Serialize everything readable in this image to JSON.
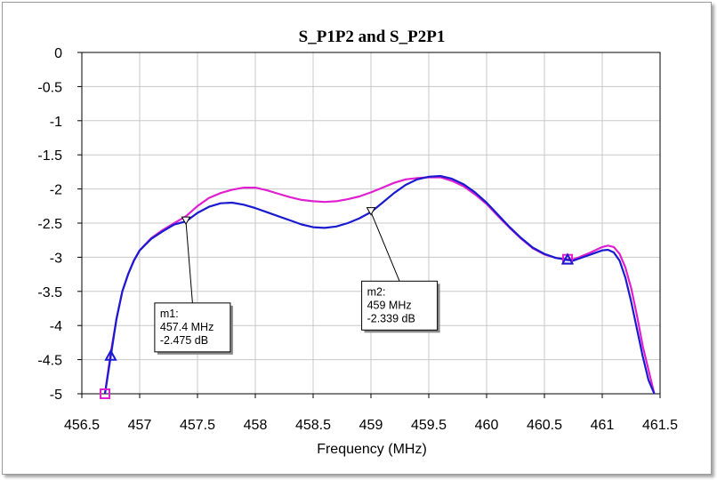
{
  "chart_data": {
    "type": "line",
    "title": "S_P1P2 and S_P2P1",
    "xlabel": "Frequency (MHz)",
    "ylabel": "",
    "xlim": [
      456.5,
      461.5
    ],
    "ylim": [
      -5,
      0
    ],
    "xticks": [
      456.5,
      457,
      457.5,
      458,
      458.5,
      459,
      459.5,
      460,
      460.5,
      461,
      461.5
    ],
    "xtick_labels": [
      "456.5",
      "457",
      "457.5",
      "458",
      "458.5",
      "459",
      "459.5",
      "460",
      "460.5",
      "461",
      "461.5"
    ],
    "yticks": [
      0,
      -0.5,
      -1,
      -1.5,
      -2,
      -2.5,
      -3,
      -3.5,
      -4,
      -4.5,
      -5
    ],
    "ytick_labels": [
      "0",
      "-0.5",
      "-1",
      "-1.5",
      "-2",
      "-2.5",
      "-3",
      "-3.5",
      "-4",
      "-4.5",
      "-5"
    ],
    "grid": true,
    "series": [
      {
        "name": "S_P1P2",
        "color": "#e020d0",
        "end_marker": "square",
        "x": [
          456.7,
          456.75,
          456.8,
          456.85,
          456.9,
          456.95,
          457.0,
          457.1,
          457.2,
          457.3,
          457.4,
          457.5,
          457.6,
          457.7,
          457.8,
          457.9,
          458.0,
          458.1,
          458.2,
          458.3,
          458.4,
          458.5,
          458.6,
          458.7,
          458.8,
          458.9,
          459.0,
          459.1,
          459.2,
          459.3,
          459.4,
          459.5,
          459.6,
          459.7,
          459.8,
          459.9,
          460.0,
          460.1,
          460.2,
          460.3,
          460.4,
          460.5,
          460.6,
          460.7,
          460.75,
          460.8,
          460.9,
          461.0,
          461.05,
          461.1,
          461.15,
          461.2,
          461.25,
          461.3,
          461.35,
          461.4,
          461.45
        ],
        "y": [
          -5.0,
          -4.4,
          -3.9,
          -3.5,
          -3.25,
          -3.05,
          -2.9,
          -2.72,
          -2.6,
          -2.5,
          -2.4,
          -2.25,
          -2.13,
          -2.06,
          -2.01,
          -1.98,
          -1.98,
          -2.02,
          -2.07,
          -2.12,
          -2.16,
          -2.18,
          -2.19,
          -2.18,
          -2.15,
          -2.11,
          -2.05,
          -1.98,
          -1.91,
          -1.86,
          -1.84,
          -1.83,
          -1.83,
          -1.88,
          -1.96,
          -2.08,
          -2.22,
          -2.4,
          -2.57,
          -2.73,
          -2.87,
          -2.96,
          -3.01,
          -3.03,
          -3.03,
          -3.0,
          -2.93,
          -2.85,
          -2.83,
          -2.85,
          -2.95,
          -3.15,
          -3.45,
          -3.85,
          -4.3,
          -4.65,
          -5.0
        ]
      },
      {
        "name": "S_P2P1",
        "color": "#1a1ad0",
        "end_marker": "triangle",
        "x": [
          456.7,
          456.75,
          456.8,
          456.85,
          456.9,
          456.95,
          457.0,
          457.1,
          457.2,
          457.3,
          457.4,
          457.5,
          457.6,
          457.7,
          457.8,
          457.9,
          458.0,
          458.1,
          458.2,
          458.3,
          458.4,
          458.5,
          458.6,
          458.7,
          458.8,
          458.9,
          459.0,
          459.1,
          459.2,
          459.3,
          459.4,
          459.5,
          459.6,
          459.7,
          459.8,
          459.9,
          460.0,
          460.1,
          460.2,
          460.3,
          460.4,
          460.5,
          460.6,
          460.7,
          460.75,
          460.8,
          460.9,
          461.0,
          461.05,
          461.1,
          461.15,
          461.2,
          461.25,
          461.3,
          461.35,
          461.4,
          461.45
        ],
        "y": [
          -5.0,
          -4.45,
          -3.9,
          -3.5,
          -3.25,
          -3.05,
          -2.9,
          -2.73,
          -2.62,
          -2.52,
          -2.475,
          -2.35,
          -2.26,
          -2.21,
          -2.2,
          -2.23,
          -2.28,
          -2.34,
          -2.4,
          -2.46,
          -2.52,
          -2.56,
          -2.57,
          -2.55,
          -2.5,
          -2.43,
          -2.339,
          -2.2,
          -2.06,
          -1.94,
          -1.86,
          -1.82,
          -1.81,
          -1.85,
          -1.93,
          -2.05,
          -2.2,
          -2.38,
          -2.56,
          -2.72,
          -2.86,
          -2.95,
          -3.01,
          -3.04,
          -3.05,
          -3.02,
          -2.96,
          -2.9,
          -2.89,
          -2.93,
          -3.05,
          -3.3,
          -3.65,
          -4.05,
          -4.45,
          -4.8,
          -5.0
        ]
      }
    ],
    "markers": [
      {
        "name": "m1",
        "x": 457.4,
        "y": -2.475,
        "label_name": "m1:",
        "label_freq": "457.4 MHz",
        "label_value": "-2.475 dB",
        "box_at_x": 457.13,
        "box_at_y": -3.67
      },
      {
        "name": "m2",
        "x": 459.0,
        "y": -2.339,
        "label_name": "m2:",
        "label_freq": "459 MHz",
        "label_value": "-2.339 dB",
        "box_at_x": 458.92,
        "box_at_y": -3.35
      }
    ]
  }
}
